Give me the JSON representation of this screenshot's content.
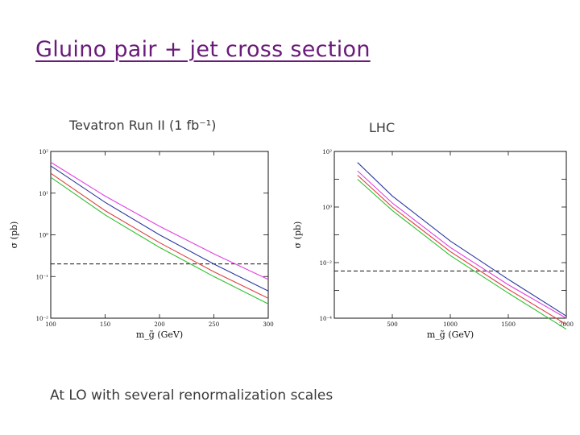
{
  "slide": {
    "title": "Gluino pair + jet cross section",
    "footer": "At LO with several renormalization scales"
  },
  "chart_data": [
    {
      "type": "line",
      "title": "Tevatron Run II (1 fb⁻¹)",
      "xlabel": "m_g̃ (GeV)",
      "ylabel": "σ (pb)",
      "xlim": [
        100,
        300
      ],
      "ylim": [
        0.01,
        100
      ],
      "yscale": "log",
      "xticks": [
        "100",
        "150",
        "200",
        "250",
        "300"
      ],
      "yticks": [
        "10⁻²",
        "10⁻¹",
        "10⁰",
        "10¹",
        "10²"
      ],
      "grid": false,
      "reference_line": {
        "y": 0.2,
        "style": "dashed"
      },
      "series": [
        {
          "color": "#e040e0",
          "x": [
            100,
            150,
            200,
            250,
            300
          ],
          "y": [
            55,
            8.5,
            1.6,
            0.35,
            0.085
          ]
        },
        {
          "color": "#2a3aa0",
          "x": [
            100,
            150,
            200,
            250,
            300
          ],
          "y": [
            45,
            6.0,
            1.0,
            0.2,
            0.045
          ]
        },
        {
          "color": "#e04040",
          "x": [
            100,
            150,
            200,
            250,
            300
          ],
          "y": [
            30,
            3.8,
            0.65,
            0.13,
            0.03
          ]
        },
        {
          "color": "#30c030",
          "x": [
            100,
            150,
            200,
            250,
            300
          ],
          "y": [
            24,
            3.0,
            0.5,
            0.1,
            0.022
          ]
        }
      ]
    },
    {
      "type": "line",
      "title": "LHC",
      "xlabel": "m_g̃ (GeV)",
      "ylabel": "σ (pb)",
      "xlim": [
        0,
        2000
      ],
      "ylim": [
        0.0001,
        100
      ],
      "yscale": "log",
      "xticks": [
        "500",
        "1000",
        "1500",
        "2000"
      ],
      "yticks": [
        "10⁻⁴",
        "10⁻²",
        "10⁰",
        "10²"
      ],
      "grid": false,
      "reference_line": {
        "y": 0.005,
        "style": "dashed"
      },
      "series": [
        {
          "color": "#2a3aa0",
          "x": [
            200,
            500,
            1000,
            1500,
            2000
          ],
          "y": [
            40,
            2.5,
            0.06,
            0.0025,
            0.00012
          ]
        },
        {
          "color": "#e040e0",
          "x": [
            200,
            500,
            1000,
            1500,
            2000
          ],
          "y": [
            20,
            1.4,
            0.035,
            0.0016,
            0.0001
          ]
        },
        {
          "color": "#e04040",
          "x": [
            200,
            500,
            1000,
            1500,
            2000
          ],
          "y": [
            14,
            1.0,
            0.025,
            0.0011,
            6e-05
          ]
        },
        {
          "color": "#30c030",
          "x": [
            200,
            500,
            1000,
            1500,
            2000
          ],
          "y": [
            10,
            0.75,
            0.018,
            0.0008,
            4e-05
          ]
        }
      ]
    }
  ]
}
